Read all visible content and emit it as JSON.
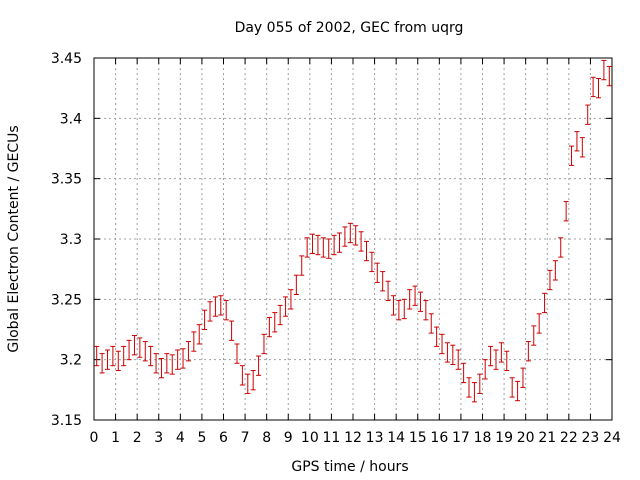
{
  "chart_data": {
    "type": "scatter",
    "title": "Day 055 of 2002, GEC from uqrg",
    "xlabel": "GPS time / hours",
    "ylabel": "Global Electron Content / GECUs",
    "xlim": [
      0,
      24
    ],
    "ylim": [
      3.15,
      3.45
    ],
    "xticks": [
      "0",
      "1",
      "2",
      "3",
      "4",
      "5",
      "6",
      "7",
      "8",
      "9",
      "10",
      "11",
      "12",
      "13",
      "14",
      "15",
      "16",
      "17",
      "18",
      "19",
      "20",
      "21",
      "22",
      "23",
      "24"
    ],
    "yticks": [
      "3.15",
      "3.2",
      "3.25",
      "3.3",
      "3.35",
      "3.4",
      "3.45"
    ],
    "grid": true,
    "error_bar_half_width": 0.008,
    "series_color": "#cc0000",
    "series": [
      {
        "x": [
          0.125,
          0.375,
          0.625,
          0.875,
          1.125,
          1.375,
          1.625,
          1.875,
          2.125,
          2.375,
          2.625,
          2.875,
          3.125,
          3.375,
          3.625,
          3.875,
          4.125,
          4.375,
          4.625,
          4.875,
          5.125,
          5.375,
          5.625,
          5.875,
          6.125,
          6.375,
          6.625,
          6.875,
          7.125,
          7.375,
          7.625,
          7.875,
          8.125,
          8.375,
          8.625,
          8.875,
          9.125,
          9.375,
          9.625,
          9.875,
          10.125,
          10.375,
          10.625,
          10.875,
          11.125,
          11.375,
          11.625,
          11.875,
          12.125,
          12.375,
          12.625,
          12.875,
          13.125,
          13.375,
          13.625,
          13.875,
          14.125,
          14.375,
          14.625,
          14.875,
          15.125,
          15.375,
          15.625,
          15.875,
          16.125,
          16.375,
          16.625,
          16.875,
          17.125,
          17.375,
          17.625,
          17.875,
          18.125,
          18.375,
          18.625,
          18.875,
          19.125,
          19.375,
          19.625,
          19.875,
          20.125,
          20.375,
          20.625,
          20.875,
          21.125,
          21.375,
          21.625,
          21.875,
          22.125,
          22.375,
          22.625,
          22.875,
          23.125,
          23.375,
          23.625,
          23.875
        ],
        "y": [
          3.203,
          3.197,
          3.2,
          3.203,
          3.199,
          3.203,
          3.208,
          3.212,
          3.21,
          3.207,
          3.203,
          3.197,
          3.193,
          3.197,
          3.196,
          3.2,
          3.201,
          3.207,
          3.215,
          3.221,
          3.233,
          3.24,
          3.244,
          3.245,
          3.241,
          3.224,
          3.205,
          3.187,
          3.18,
          3.183,
          3.195,
          3.213,
          3.227,
          3.231,
          3.237,
          3.244,
          3.25,
          3.262,
          3.278,
          3.293,
          3.296,
          3.295,
          3.293,
          3.292,
          3.295,
          3.297,
          3.302,
          3.305,
          3.303,
          3.298,
          3.29,
          3.281,
          3.272,
          3.265,
          3.257,
          3.245,
          3.241,
          3.242,
          3.25,
          3.253,
          3.248,
          3.241,
          3.23,
          3.219,
          3.213,
          3.206,
          3.204,
          3.2,
          3.189,
          3.177,
          3.173,
          3.18,
          3.192,
          3.203,
          3.2,
          3.206,
          3.199,
          3.177,
          3.174,
          3.185,
          3.207,
          3.22,
          3.23,
          3.247,
          3.266,
          3.274,
          3.293,
          3.323,
          3.369,
          3.381,
          3.376,
          3.403,
          3.426,
          3.425,
          3.44,
          3.435
        ]
      }
    ]
  }
}
